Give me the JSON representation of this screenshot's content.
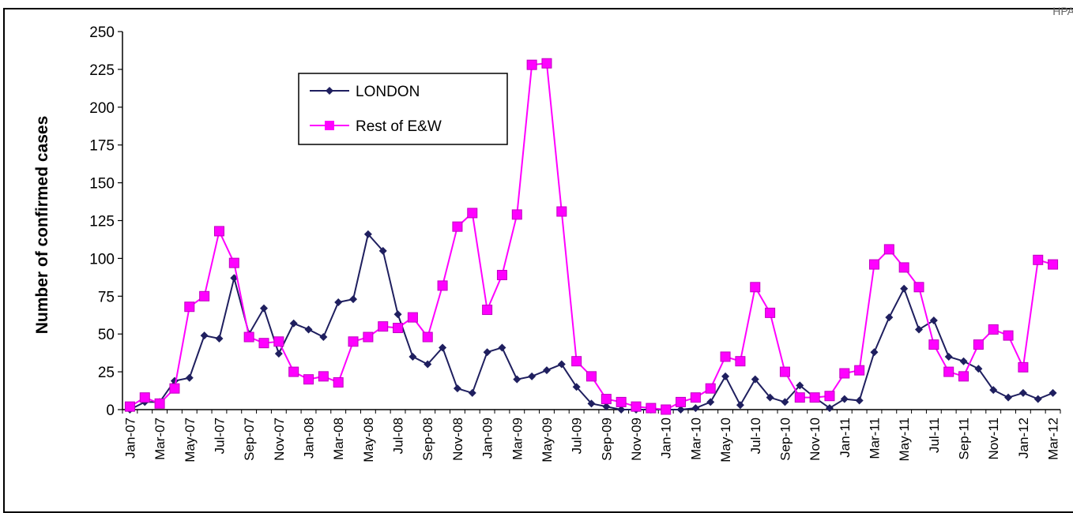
{
  "corner_text": "HPA",
  "chart_data": {
    "type": "line",
    "title": "",
    "xlabel": "",
    "ylabel": "Number of confirmed cases",
    "ylim": [
      0,
      250
    ],
    "yticks": [
      0,
      25,
      50,
      75,
      100,
      125,
      150,
      175,
      200,
      225,
      250
    ],
    "grid": false,
    "legend_position": "top-left-center",
    "categories": [
      "Jan-07",
      "Feb-07",
      "Mar-07",
      "Apr-07",
      "May-07",
      "Jun-07",
      "Jul-07",
      "Aug-07",
      "Sep-07",
      "Oct-07",
      "Nov-07",
      "Dec-07",
      "Jan-08",
      "Feb-08",
      "Mar-08",
      "Apr-08",
      "May-08",
      "Jun-08",
      "Jul-08",
      "Aug-08",
      "Sep-08",
      "Oct-08",
      "Nov-08",
      "Dec-08",
      "Jan-09",
      "Feb-09",
      "Mar-09",
      "Apr-09",
      "May-09",
      "Jun-09",
      "Jul-09",
      "Aug-09",
      "Sep-09",
      "Oct-09",
      "Nov-09",
      "Dec-09",
      "Jan-10",
      "Feb-10",
      "Mar-10",
      "Apr-10",
      "May-10",
      "Jun-10",
      "Jul-10",
      "Aug-10",
      "Sep-10",
      "Oct-10",
      "Nov-10",
      "Dec-10",
      "Jan-11",
      "Feb-11",
      "Mar-11",
      "Apr-11",
      "May-11",
      "Jun-11",
      "Jul-11",
      "Aug-11",
      "Sep-11",
      "Oct-11",
      "Nov-11",
      "Dec-11",
      "Jan-12",
      "Feb-12",
      "Mar-12"
    ],
    "tick_labels": [
      "Jan-07",
      "Mar-07",
      "May-07",
      "Jul-07",
      "Sep-07",
      "Nov-07",
      "Jan-08",
      "Mar-08",
      "May-08",
      "Jul-08",
      "Sep-08",
      "Nov-08",
      "Jan-09",
      "Mar-09",
      "May-09",
      "Jul-09",
      "Sep-09",
      "Nov-09",
      "Jan-10",
      "Mar-10",
      "May-10",
      "Jul-10",
      "Sep-10",
      "Nov-10",
      "Jan-11",
      "Mar-11",
      "May-11",
      "Jul-11",
      "Sep-11",
      "Nov-11",
      "Jan-12",
      "Mar-12"
    ],
    "series": [
      {
        "name": "LONDON",
        "color": "#1f1f5f",
        "marker": "diamond",
        "values": [
          0,
          5,
          5,
          19,
          21,
          49,
          47,
          87,
          50,
          67,
          37,
          57,
          53,
          48,
          71,
          73,
          116,
          105,
          63,
          35,
          30,
          41,
          14,
          11,
          38,
          41,
          20,
          22,
          26,
          30,
          15,
          4,
          2,
          0,
          0,
          0,
          0,
          0,
          1,
          5,
          22,
          3,
          20,
          8,
          5,
          16,
          8,
          1,
          7,
          6,
          38,
          61,
          80,
          53,
          59,
          35,
          32,
          27,
          13,
          8,
          11,
          7,
          11
        ]
      },
      {
        "name": "Rest of E&W",
        "color": "#ff00ff",
        "marker": "square",
        "values": [
          2,
          8,
          4,
          14,
          68,
          75,
          118,
          97,
          48,
          44,
          45,
          25,
          20,
          22,
          18,
          45,
          48,
          55,
          54,
          61,
          48,
          82,
          121,
          130,
          66,
          89,
          129,
          228,
          229,
          131,
          32,
          22,
          7,
          5,
          2,
          1,
          0,
          5,
          8,
          14,
          35,
          32,
          81,
          64,
          25,
          8,
          8,
          9,
          24,
          26,
          96,
          106,
          94,
          81,
          43,
          25,
          22,
          43,
          53,
          49,
          28,
          99,
          96
        ]
      }
    ]
  }
}
